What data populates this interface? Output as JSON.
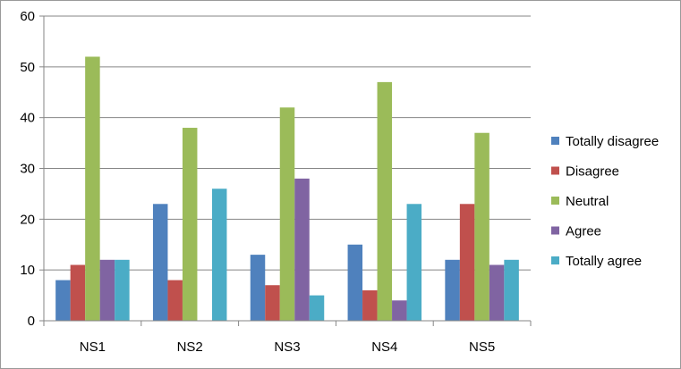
{
  "chart_data": {
    "type": "bar",
    "title": "",
    "xlabel": "",
    "ylabel": "",
    "ylim": [
      0,
      60
    ],
    "yticks": [
      0,
      10,
      20,
      30,
      40,
      50,
      60
    ],
    "grid": true,
    "legend_position": "right",
    "categories": [
      "NS1",
      "NS2",
      "NS3",
      "NS4",
      "NS5"
    ],
    "series": [
      {
        "name": "Totally disagree",
        "color": "#4F81BD",
        "values": [
          8,
          23,
          13,
          15,
          12
        ]
      },
      {
        "name": "Disagree",
        "color": "#C0504D",
        "values": [
          11,
          8,
          7,
          6,
          23
        ]
      },
      {
        "name": "Neutral",
        "color": "#9BBB59",
        "values": [
          52,
          38,
          42,
          47,
          37
        ]
      },
      {
        "name": "Agree",
        "color": "#8064A2",
        "values": [
          12,
          0,
          28,
          4,
          11
        ]
      },
      {
        "name": "Totally agree",
        "color": "#4BACC6",
        "values": [
          12,
          26,
          5,
          23,
          12
        ]
      }
    ]
  }
}
